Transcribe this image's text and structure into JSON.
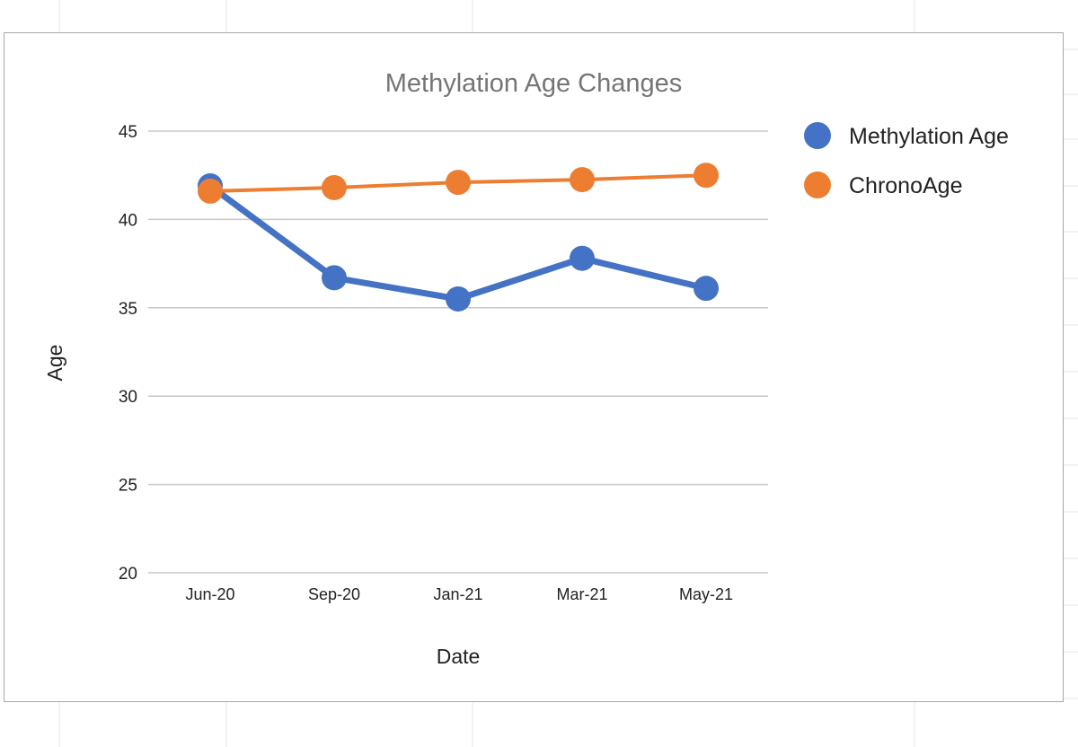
{
  "chart_data": {
    "type": "line",
    "title": "Methylation Age Changes",
    "xlabel": "Date",
    "ylabel": "Age",
    "categories": [
      "Jun-20",
      "Sep-20",
      "Jan-21",
      "Mar-21",
      "May-21"
    ],
    "ylim": [
      20,
      45
    ],
    "yticks": [
      20,
      25,
      30,
      35,
      40,
      45
    ],
    "grid": true,
    "legend_position": "right",
    "series": [
      {
        "name": "Methylation Age",
        "color": "#4472C4",
        "values": [
          41.9,
          36.7,
          35.5,
          37.8,
          36.1
        ]
      },
      {
        "name": "ChronoAge",
        "color": "#ED7D31",
        "values": [
          41.6,
          41.8,
          42.1,
          42.25,
          42.5
        ]
      }
    ]
  }
}
